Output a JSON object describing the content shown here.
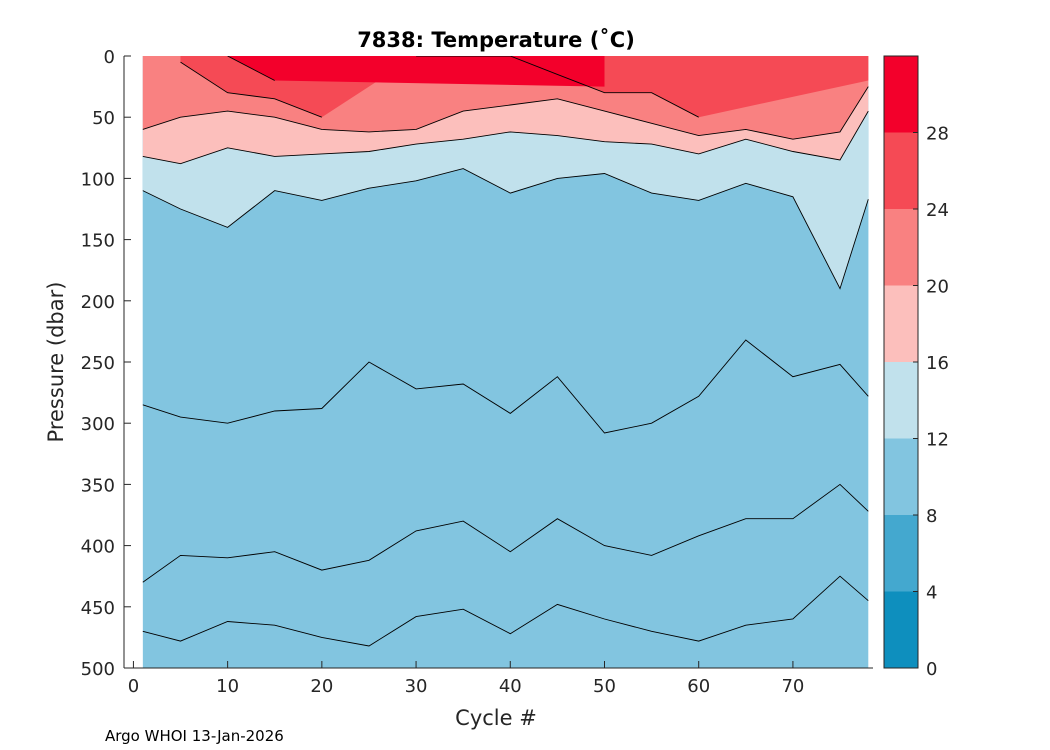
{
  "chart_data": {
    "type": "contourf",
    "title": "7838:  Temperature (˚C)",
    "xlabel": "Cycle #",
    "ylabel": "Pressure (dbar)",
    "xlim": [
      -1,
      78.5
    ],
    "ylim": [
      0,
      500
    ],
    "y_reversed": true,
    "x_ticks": [
      0,
      10,
      20,
      30,
      40,
      50,
      60,
      70
    ],
    "x_tick_labels": [
      "0",
      "10",
      "20",
      "30",
      "40",
      "50",
      "60",
      "70"
    ],
    "y_ticks": [
      0,
      50,
      100,
      150,
      200,
      250,
      300,
      350,
      400,
      450,
      500
    ],
    "y_tick_labels": [
      "0",
      "50",
      "100",
      "150",
      "200",
      "250",
      "300",
      "350",
      "400",
      "450",
      "500"
    ],
    "colorbar": {
      "levels": [
        0,
        4,
        8,
        12,
        16,
        20,
        24,
        28,
        32
      ],
      "tick_values": [
        0,
        4,
        8,
        12,
        16,
        20,
        24,
        28
      ],
      "tick_labels": [
        "0",
        "4",
        "8",
        "12",
        "16",
        "20",
        "24",
        "28"
      ],
      "colors": [
        "#0e8fbe",
        "#44a8cf",
        "#82c5e0",
        "#c1e1ec",
        "#fcbfbc",
        "#f98181",
        "#f54a55",
        "#f3002b"
      ]
    },
    "cycles": [
      1,
      5,
      10,
      15,
      20,
      25,
      30,
      35,
      40,
      45,
      50,
      55,
      60,
      65,
      70,
      75,
      78
    ],
    "isotherms": [
      {
        "level": 28,
        "pressure": [
          null,
          null,
          0,
          20,
          null,
          null,
          null,
          null,
          null,
          null,
          25,
          null,
          null,
          null,
          null,
          null,
          null
        ]
      },
      {
        "level": 24,
        "pressure": [
          null,
          5,
          30,
          35,
          50,
          null,
          0,
          0,
          0,
          15,
          30,
          30,
          50,
          null,
          null,
          null,
          20
        ]
      },
      {
        "level": 20,
        "pressure": [
          60,
          50,
          45,
          50,
          60,
          62,
          60,
          45,
          40,
          35,
          45,
          55,
          65,
          60,
          68,
          62,
          25
        ]
      },
      {
        "level": 16,
        "pressure": [
          82,
          88,
          75,
          82,
          80,
          78,
          72,
          68,
          62,
          65,
          70,
          72,
          80,
          68,
          78,
          85,
          45
        ]
      },
      {
        "level": 12,
        "pressure": [
          110,
          125,
          140,
          110,
          118,
          108,
          102,
          92,
          112,
          100,
          96,
          112,
          118,
          104,
          115,
          190,
          117
        ]
      },
      {
        "level": 8,
        "pressure": [
          285,
          295,
          300,
          290,
          288,
          250,
          272,
          268,
          292,
          262,
          308,
          300,
          278,
          232,
          262,
          252,
          278
        ]
      },
      {
        "level": 4,
        "pressure": [
          430,
          408,
          410,
          405,
          420,
          412,
          388,
          380,
          405,
          378,
          400,
          408,
          392,
          378,
          378,
          350,
          372
        ]
      },
      {
        "level": 2,
        "pressure": [
          470,
          478,
          462,
          465,
          475,
          482,
          458,
          452,
          472,
          448,
          460,
          470,
          478,
          465,
          460,
          425,
          445
        ]
      }
    ],
    "footer": "Argo WHOI 13-Jan-2026"
  }
}
